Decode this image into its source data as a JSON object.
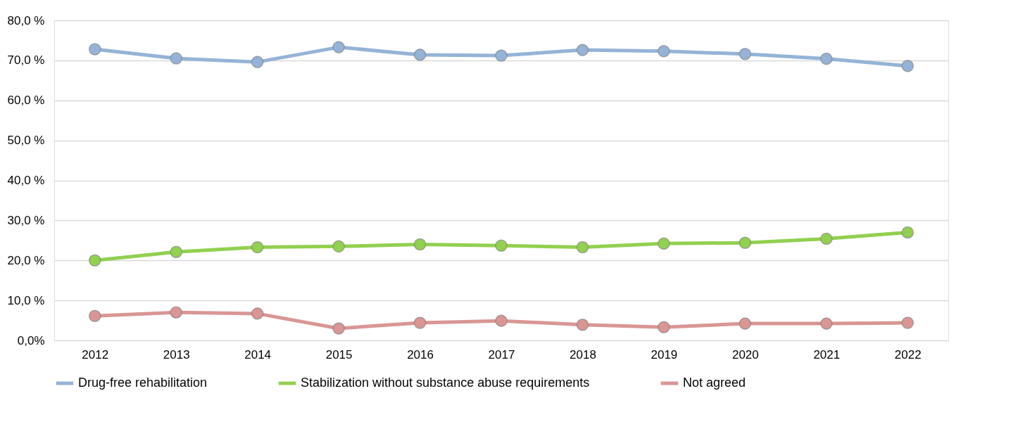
{
  "chart_data": {
    "type": "line",
    "categories": [
      "2012",
      "2013",
      "2014",
      "2015",
      "2016",
      "2017",
      "2018",
      "2019",
      "2020",
      "2021",
      "2022"
    ],
    "series": [
      {
        "name": "Drug-free rehabilitation",
        "color": "#95b3d7",
        "values": [
          72.8,
          70.5,
          69.6,
          73.3,
          71.4,
          71.2,
          72.6,
          72.3,
          71.6,
          70.4,
          68.6
        ]
      },
      {
        "name": "Stabilization without substance abuse requirements",
        "color": "#92d050",
        "values": [
          20.0,
          22.1,
          23.3,
          23.5,
          24.0,
          23.7,
          23.3,
          24.2,
          24.4,
          25.4,
          27.0
        ]
      },
      {
        "name": "Not agreed",
        "color": "#d99694",
        "values": [
          6.1,
          7.0,
          6.7,
          3.0,
          4.4,
          4.9,
          3.9,
          3.3,
          4.2,
          4.2,
          4.4
        ]
      }
    ],
    "ylim": [
      0,
      80
    ],
    "yticks": [
      {
        "value": 0,
        "label": "0,0%"
      },
      {
        "value": 10,
        "label": "10,0 %"
      },
      {
        "value": 20,
        "label": "20,0 %"
      },
      {
        "value": 30,
        "label": "30,0 %"
      },
      {
        "value": 40,
        "label": "40,0 %"
      },
      {
        "value": 50,
        "label": "50,0 %"
      },
      {
        "value": 60,
        "label": "60,0 %"
      },
      {
        "value": 70,
        "label": "70,0 %"
      },
      {
        "value": 80,
        "label": "80,0 %"
      }
    ],
    "grid": "y",
    "legend": "bottom",
    "marker": "circle",
    "line_style": "solid"
  }
}
